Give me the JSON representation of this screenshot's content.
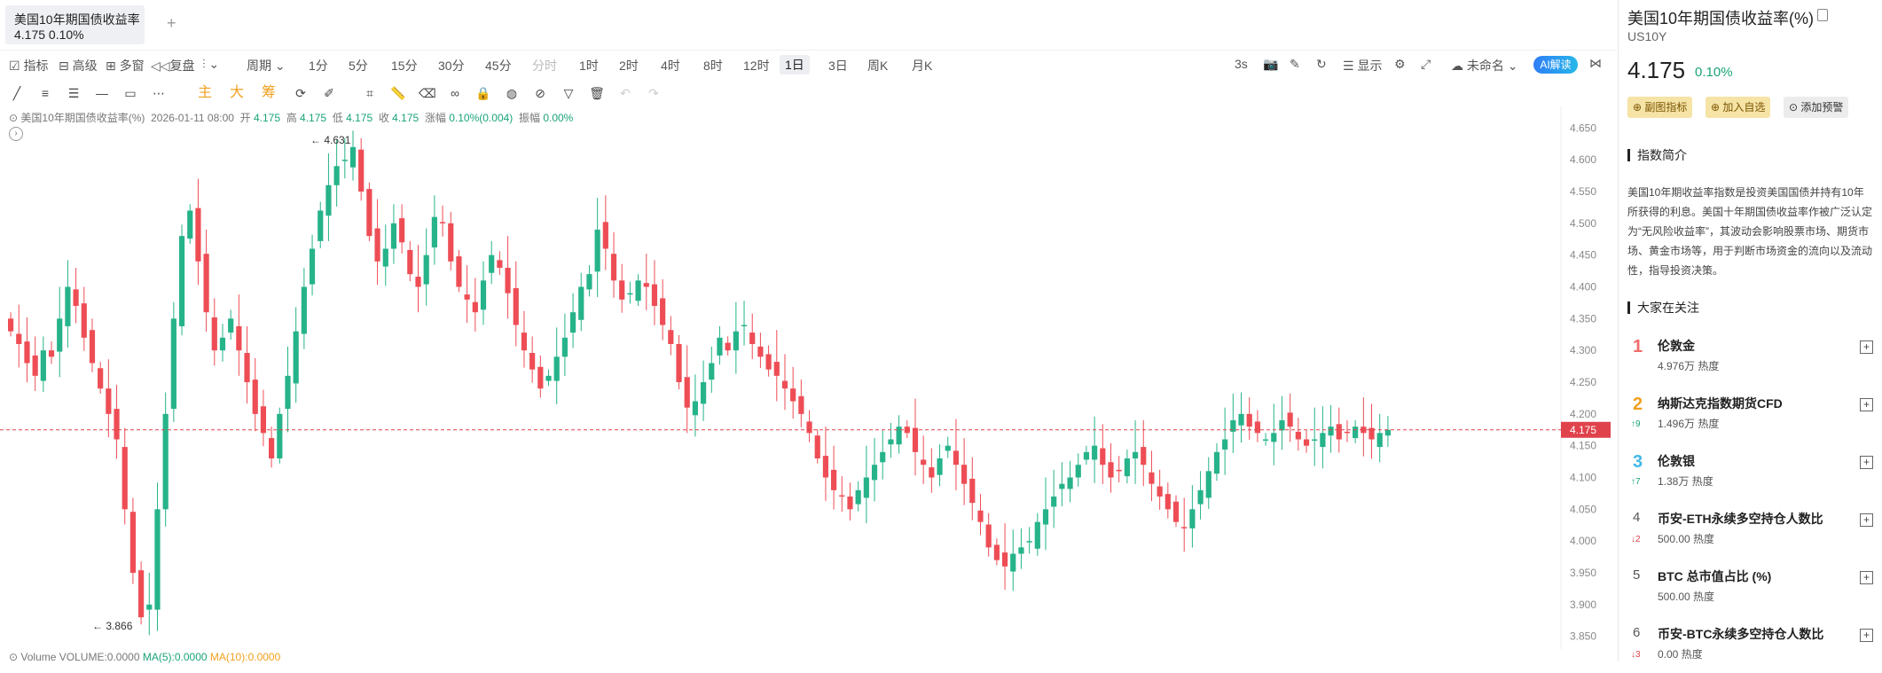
{
  "tab": {
    "title": "美国10年期国债收益率",
    "price_change": "4.175  0.10%",
    "add_label": "+"
  },
  "toolbar": {
    "items": [
      "指标",
      "高级",
      "多窗",
      "复盘",
      "",
      "周期"
    ],
    "intervals": [
      "1分",
      "5分",
      "15分",
      "30分",
      "45分",
      "分时",
      "1时",
      "2时",
      "4时",
      "8时",
      "12时",
      "1日",
      "3日",
      "周K",
      "月K"
    ],
    "active_interval": "1日",
    "right_items": [
      "3s",
      "显示",
      "未命名"
    ],
    "ai_label": "AI解读"
  },
  "drawbar": {
    "labels": [
      "主",
      "大",
      "筹"
    ]
  },
  "legend": {
    "name": "美国10年期国债收益率(%)",
    "date": "2026-01-11 08:00",
    "open_label": "开",
    "open": "4.175",
    "high_label": "高",
    "high": "4.175",
    "low_label": "低",
    "low": "4.175",
    "close_label": "收",
    "close": "4.175",
    "change_label": "涨幅",
    "change": "0.10%(0.004)",
    "amp_label": "振幅",
    "amp": "0.00%"
  },
  "volume_legend": {
    "label": "Volume",
    "volume": "VOLUME:0.0000",
    "ma5": "MA(5):0.0000",
    "ma10": "MA(10):0.0000"
  },
  "chart_data": {
    "type": "candlestick",
    "y_ticks": [
      "4.650",
      "4.600",
      "4.550",
      "4.500",
      "4.450",
      "4.400",
      "4.350",
      "4.300",
      "4.250",
      "4.200",
      "4.150",
      "4.100",
      "4.050",
      "4.000",
      "3.950",
      "3.900",
      "3.850"
    ],
    "ylim": [
      3.83,
      4.67
    ],
    "current_price": "4.175",
    "max_label": "4.631",
    "min_label": "3.866",
    "close_series": [
      4.33,
      4.31,
      4.28,
      4.26,
      4.3,
      4.29,
      4.35,
      4.4,
      4.37,
      4.32,
      4.28,
      4.24,
      4.2,
      4.16,
      4.05,
      3.95,
      3.88,
      3.9,
      4.05,
      4.2,
      4.35,
      4.48,
      4.52,
      4.44,
      4.36,
      4.3,
      4.32,
      4.35,
      4.3,
      4.25,
      4.2,
      4.17,
      4.13,
      4.2,
      4.26,
      4.33,
      4.4,
      4.46,
      4.52,
      4.56,
      4.59,
      4.6,
      4.62,
      4.55,
      4.48,
      4.44,
      4.46,
      4.5,
      4.47,
      4.42,
      4.4,
      4.45,
      4.51,
      4.5,
      4.44,
      4.4,
      4.38,
      4.36,
      4.41,
      4.45,
      4.43,
      4.39,
      4.34,
      4.3,
      4.27,
      4.24,
      4.26,
      4.29,
      4.32,
      4.36,
      4.4,
      4.42,
      4.49,
      4.46,
      4.41,
      4.38,
      4.39,
      4.41,
      4.4,
      4.37,
      4.34,
      4.31,
      4.25,
      4.21,
      4.22,
      4.25,
      4.28,
      4.32,
      4.3,
      4.33,
      4.34,
      4.31,
      4.29,
      4.27,
      4.26,
      4.24,
      4.22,
      4.2,
      4.17,
      4.13,
      4.1,
      4.08,
      4.07,
      4.05,
      4.08,
      4.1,
      4.12,
      4.14,
      4.16,
      4.18,
      4.17,
      4.14,
      4.12,
      4.1,
      4.13,
      4.15,
      4.12,
      4.09,
      4.06,
      4.03,
      3.99,
      3.97,
      3.96,
      3.98,
      3.99,
      4.0,
      4.03,
      4.05,
      4.07,
      4.09,
      4.1,
      4.12,
      4.14,
      4.15,
      4.12,
      4.1,
      4.11,
      4.13,
      4.14,
      4.12,
      4.09,
      4.07,
      4.05,
      4.03,
      4.02,
      4.05,
      4.08,
      4.11,
      4.14,
      4.16,
      4.19,
      4.2,
      4.18,
      4.17,
      4.16,
      4.17,
      4.19,
      4.18,
      4.16,
      4.15,
      4.16,
      4.17,
      4.18,
      4.16,
      4.17,
      4.18,
      4.17,
      4.16,
      4.17,
      4.175
    ]
  },
  "panel": {
    "title": "美国10年期国债收益率(%)",
    "code": "US10Y",
    "price": "4.175",
    "change": "0.10%",
    "buttons": [
      "副图指标",
      "加入自选",
      "添加预警"
    ],
    "intro_heading": "指数简介",
    "intro_text": "美国10年期收益率指数是投资美国国债并持有10年所获得的利息。美国十年期国债收益率作被广泛认定为“无风险收益率”，其波动会影响股票市场、期货市场、黄金市场等，用于判断市场资金的流向以及流动性，指导投资决策。",
    "popular_heading": "大家在关注",
    "popular": [
      {
        "rank": "1",
        "delta": "",
        "name": "伦敦金",
        "heat": "4.976万 热度",
        "color": "#f26b6b"
      },
      {
        "rank": "2",
        "delta": "↑9",
        "name": "纳斯达克指数期货CFD",
        "heat": "1.496万 热度",
        "color": "#f0a020"
      },
      {
        "rank": "3",
        "delta": "↑7",
        "name": "伦敦银",
        "heat": "1.38万 热度",
        "color": "#41b8e6"
      },
      {
        "rank": "4",
        "delta": "↓2",
        "name": "币安-ETH永续多空持仓人数比",
        "heat": "500.00 热度",
        "color": "#555"
      },
      {
        "rank": "5",
        "delta": "",
        "name": "BTC 总市值占比 (%)",
        "heat": "500.00 热度",
        "color": "#555"
      },
      {
        "rank": "6",
        "delta": "↓3",
        "name": "币安-BTC永续多空持仓人数比",
        "heat": "0.00 热度",
        "color": "#555"
      }
    ]
  }
}
